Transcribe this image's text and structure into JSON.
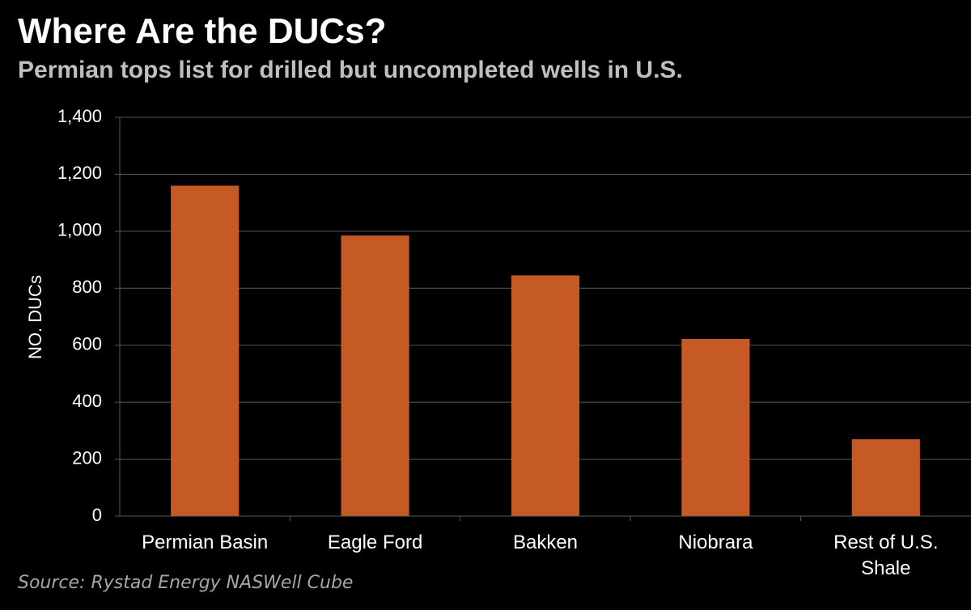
{
  "header": {
    "title": "Where Are the DUCs?",
    "subtitle": "Permian tops list for drilled but uncompleted wells in U.S."
  },
  "footer": {
    "source": "Source: Rystad Energy NASWell Cube"
  },
  "colors": {
    "background": "#000000",
    "bar": "#c65a24",
    "gridline": "#595959",
    "axis_text": "#ffffff",
    "subtitle": "#bfbfbf",
    "source": "#a6a6a6"
  },
  "chart_data": {
    "type": "bar",
    "title": "Where Are the DUCs?",
    "subtitle": "Permian tops list for drilled but uncompleted wells in U.S.",
    "xlabel": "",
    "ylabel": "NO. DUCs",
    "ylim": [
      0,
      1400
    ],
    "yticks": [
      0,
      200,
      400,
      600,
      800,
      1000,
      1200,
      1400
    ],
    "ytick_labels": [
      "0",
      "200",
      "400",
      "600",
      "800",
      "1,000",
      "1,200",
      "1,400"
    ],
    "grid": true,
    "legend": "none",
    "categories": [
      [
        "Permian Basin"
      ],
      [
        "Eagle Ford"
      ],
      [
        "Bakken"
      ],
      [
        "Niobrara"
      ],
      [
        "Rest of U.S.",
        "Shale"
      ]
    ],
    "values": [
      1160,
      985,
      845,
      622,
      270
    ]
  }
}
